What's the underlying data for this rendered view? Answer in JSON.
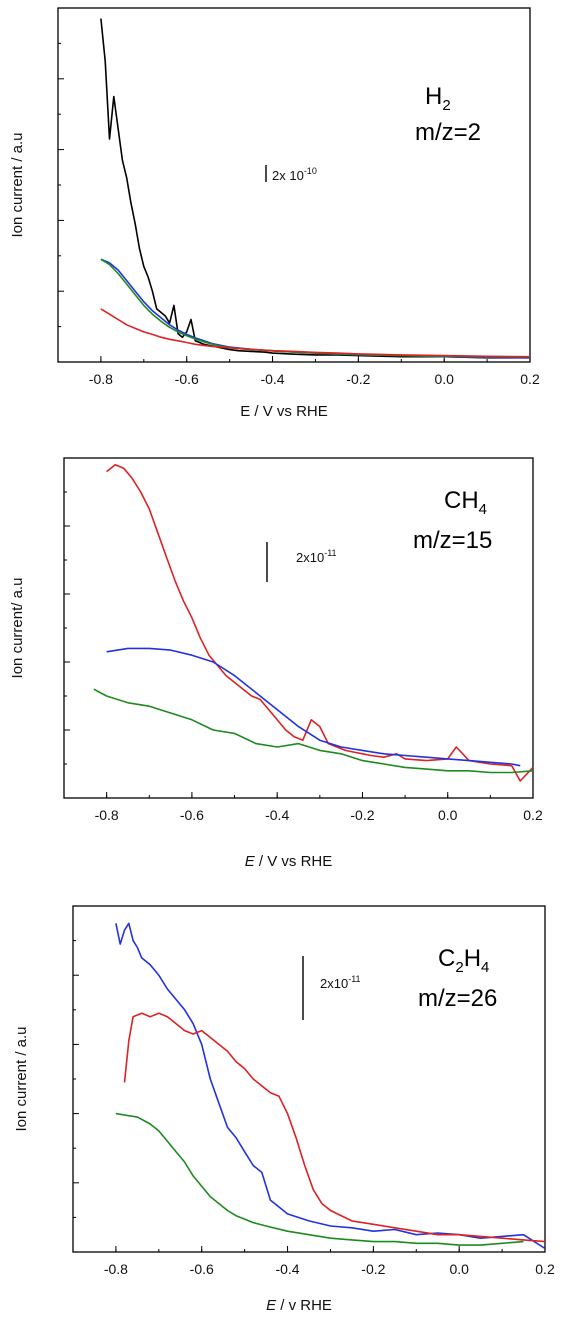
{
  "chart_data": [
    {
      "type": "line",
      "species": "H",
      "species_sub": "2",
      "species_tail": "",
      "mz": "m/z=2",
      "scale_bar": "2x 10",
      "scale_bar_exp": "-10",
      "xlabel_italic": "E",
      "xlabel_rest": " / V vs RHE",
      "ylabel": "Ion current / a.u",
      "xlim": [
        -0.9,
        0.2
      ],
      "ylim": [
        0,
        10
      ],
      "xticks": [
        "-0.8",
        "-0.6",
        "-0.4",
        "-0.2",
        "0.0",
        "0.2"
      ],
      "xtick_values": [
        -0.8,
        -0.6,
        -0.4,
        -0.2,
        0.0,
        0.2
      ],
      "series": [
        {
          "color": "#000000",
          "x": [
            -0.8,
            -0.79,
            -0.78,
            -0.77,
            -0.76,
            -0.75,
            -0.74,
            -0.73,
            -0.72,
            -0.71,
            -0.7,
            -0.69,
            -0.68,
            -0.67,
            -0.66,
            -0.65,
            -0.64,
            -0.63,
            -0.62,
            -0.61,
            -0.6,
            -0.59,
            -0.58,
            -0.56,
            -0.54,
            -0.52,
            -0.5,
            -0.48,
            -0.45,
            -0.42,
            -0.4,
            -0.35,
            -0.3,
            -0.25,
            -0.2,
            -0.1,
            0.0,
            0.1,
            0.2
          ],
          "y": [
            9.7,
            8.5,
            6.3,
            7.5,
            6.6,
            5.7,
            5.2,
            4.5,
            3.9,
            3.2,
            2.7,
            2.4,
            2.0,
            1.5,
            1.4,
            1.3,
            1.1,
            1.6,
            0.8,
            0.7,
            0.85,
            1.2,
            0.6,
            0.5,
            0.45,
            0.4,
            0.35,
            0.32,
            0.3,
            0.28,
            0.25,
            0.22,
            0.2,
            0.2,
            0.18,
            0.15,
            0.15,
            0.12,
            0.12
          ]
        },
        {
          "color": "#2233dd",
          "x": [
            -0.8,
            -0.78,
            -0.76,
            -0.74,
            -0.72,
            -0.7,
            -0.68,
            -0.66,
            -0.64,
            -0.62,
            -0.6,
            -0.58,
            -0.56,
            -0.54,
            -0.52,
            -0.5,
            -0.45,
            -0.4,
            -0.35,
            -0.3,
            -0.25,
            -0.2,
            -0.1,
            0.0,
            0.1,
            0.2
          ],
          "y": [
            2.9,
            2.8,
            2.6,
            2.3,
            2.0,
            1.7,
            1.45,
            1.25,
            1.05,
            0.9,
            0.78,
            0.68,
            0.6,
            0.52,
            0.47,
            0.42,
            0.36,
            0.32,
            0.28,
            0.25,
            0.22,
            0.2,
            0.18,
            0.15,
            0.13,
            0.12
          ]
        },
        {
          "color": "#1f8a1f",
          "x": [
            -0.8,
            -0.78,
            -0.76,
            -0.74,
            -0.72,
            -0.7,
            -0.68,
            -0.66,
            -0.64,
            -0.62,
            -0.6,
            -0.58,
            -0.56,
            -0.54,
            -0.52,
            -0.5,
            -0.45,
            -0.4,
            -0.35,
            -0.3,
            -0.25,
            -0.2,
            -0.1,
            0.0,
            0.1,
            0.2
          ],
          "y": [
            2.9,
            2.75,
            2.5,
            2.2,
            1.9,
            1.6,
            1.35,
            1.15,
            0.98,
            0.85,
            0.74,
            0.65,
            0.57,
            0.5,
            0.45,
            0.4,
            0.35,
            0.31,
            0.28,
            0.25,
            0.23,
            0.21,
            0.18,
            0.16,
            0.15,
            0.14
          ]
        },
        {
          "color": "#dd2222",
          "x": [
            -0.8,
            -0.78,
            -0.76,
            -0.74,
            -0.72,
            -0.7,
            -0.68,
            -0.66,
            -0.64,
            -0.62,
            -0.6,
            -0.58,
            -0.56,
            -0.54,
            -0.52,
            -0.5,
            -0.45,
            -0.4,
            -0.35,
            -0.3,
            -0.25,
            -0.2,
            -0.1,
            0.0,
            0.1,
            0.2
          ],
          "y": [
            1.5,
            1.35,
            1.2,
            1.05,
            0.95,
            0.85,
            0.78,
            0.7,
            0.64,
            0.6,
            0.55,
            0.5,
            0.47,
            0.44,
            0.42,
            0.4,
            0.36,
            0.32,
            0.3,
            0.27,
            0.25,
            0.23,
            0.2,
            0.18,
            0.16,
            0.15
          ]
        }
      ]
    },
    {
      "type": "line",
      "species": "CH",
      "species_sub": "4",
      "species_tail": "",
      "mz": "m/z=15",
      "scale_bar": "2x10",
      "scale_bar_exp": "-11",
      "xlabel_italic": "E",
      "xlabel_rest": " / V vs RHE",
      "ylabel": "Ion current/ a.u",
      "xlim": [
        -0.9,
        0.2
      ],
      "ylim": [
        0,
        10
      ],
      "xticks": [
        "-0.8",
        "-0.6",
        "-0.4",
        "-0.2",
        "0.0",
        "0.2"
      ],
      "xtick_values": [
        -0.8,
        -0.6,
        -0.4,
        -0.2,
        0.0,
        0.2
      ],
      "series": [
        {
          "color": "#dd2222",
          "x": [
            -0.8,
            -0.78,
            -0.76,
            -0.74,
            -0.72,
            -0.7,
            -0.68,
            -0.66,
            -0.64,
            -0.62,
            -0.6,
            -0.58,
            -0.56,
            -0.54,
            -0.52,
            -0.5,
            -0.48,
            -0.46,
            -0.44,
            -0.42,
            -0.4,
            -0.38,
            -0.36,
            -0.34,
            -0.32,
            -0.3,
            -0.28,
            -0.26,
            -0.24,
            -0.22,
            -0.2,
            -0.18,
            -0.15,
            -0.12,
            -0.1,
            -0.05,
            0.0,
            0.02,
            0.05,
            0.1,
            0.15,
            0.17,
            0.2
          ],
          "y": [
            9.6,
            9.8,
            9.7,
            9.4,
            9.0,
            8.5,
            7.8,
            7.1,
            6.4,
            5.8,
            5.3,
            4.7,
            4.2,
            3.9,
            3.6,
            3.4,
            3.2,
            3.0,
            2.9,
            2.6,
            2.3,
            2.0,
            1.8,
            1.7,
            2.3,
            2.1,
            1.6,
            1.5,
            1.4,
            1.35,
            1.3,
            1.25,
            1.2,
            1.3,
            1.15,
            1.1,
            1.15,
            1.5,
            1.1,
            1.0,
            0.95,
            0.5,
            0.9
          ]
        },
        {
          "color": "#2233dd",
          "x": [
            -0.8,
            -0.75,
            -0.7,
            -0.65,
            -0.6,
            -0.55,
            -0.5,
            -0.45,
            -0.4,
            -0.35,
            -0.3,
            -0.25,
            -0.2,
            -0.15,
            -0.1,
            -0.05,
            0.0,
            0.05,
            0.1,
            0.15,
            0.17
          ],
          "y": [
            4.3,
            4.4,
            4.4,
            4.35,
            4.2,
            4.0,
            3.6,
            3.1,
            2.6,
            2.1,
            1.7,
            1.5,
            1.4,
            1.3,
            1.25,
            1.2,
            1.15,
            1.1,
            1.05,
            1.0,
            0.95
          ]
        },
        {
          "color": "#1f8a1f",
          "x": [
            -0.83,
            -0.8,
            -0.75,
            -0.7,
            -0.65,
            -0.6,
            -0.55,
            -0.5,
            -0.45,
            -0.4,
            -0.35,
            -0.3,
            -0.25,
            -0.2,
            -0.15,
            -0.1,
            -0.05,
            0.0,
            0.05,
            0.1,
            0.15,
            0.2
          ],
          "y": [
            3.2,
            3.0,
            2.8,
            2.7,
            2.5,
            2.3,
            2.0,
            1.9,
            1.6,
            1.5,
            1.6,
            1.4,
            1.3,
            1.1,
            1.0,
            0.9,
            0.85,
            0.8,
            0.8,
            0.75,
            0.75,
            0.8
          ]
        }
      ]
    },
    {
      "type": "line",
      "species": "C",
      "species_sub": "2",
      "species_tail": "H",
      "species_sub2": "4",
      "mz": "m/z=26",
      "scale_bar": "2x10",
      "scale_bar_exp": "-11",
      "xlabel_italic": "E",
      "xlabel_rest": " / v RHE",
      "ylabel": "Ion current / a.u",
      "xlim": [
        -0.9,
        0.2
      ],
      "ylim": [
        0,
        10
      ],
      "xticks": [
        "-0.8",
        "-0.6",
        "-0.4",
        "-0.2",
        "0.0",
        "0.2"
      ],
      "xtick_values": [
        -0.8,
        -0.6,
        -0.4,
        -0.2,
        0.0,
        0.2
      ],
      "series": [
        {
          "color": "#2233dd",
          "x": [
            -0.8,
            -0.79,
            -0.78,
            -0.77,
            -0.76,
            -0.75,
            -0.74,
            -0.72,
            -0.7,
            -0.68,
            -0.66,
            -0.64,
            -0.62,
            -0.6,
            -0.58,
            -0.56,
            -0.54,
            -0.52,
            -0.5,
            -0.48,
            -0.46,
            -0.44,
            -0.42,
            -0.4,
            -0.35,
            -0.3,
            -0.25,
            -0.2,
            -0.15,
            -0.1,
            -0.05,
            0.0,
            0.05,
            0.1,
            0.15,
            0.2
          ],
          "y": [
            9.5,
            8.9,
            9.3,
            9.5,
            9.0,
            8.8,
            8.5,
            8.3,
            8.0,
            7.6,
            7.3,
            7.0,
            6.6,
            6.0,
            5.0,
            4.3,
            3.6,
            3.3,
            2.9,
            2.5,
            2.3,
            1.5,
            1.3,
            1.1,
            0.9,
            0.75,
            0.7,
            0.6,
            0.65,
            0.5,
            0.55,
            0.5,
            0.4,
            0.45,
            0.5,
            0.1
          ]
        },
        {
          "color": "#dd2222",
          "x": [
            -0.78,
            -0.77,
            -0.76,
            -0.74,
            -0.72,
            -0.7,
            -0.68,
            -0.66,
            -0.64,
            -0.62,
            -0.6,
            -0.58,
            -0.56,
            -0.54,
            -0.52,
            -0.5,
            -0.48,
            -0.46,
            -0.44,
            -0.42,
            -0.4,
            -0.38,
            -0.36,
            -0.34,
            -0.32,
            -0.3,
            -0.25,
            -0.2,
            -0.15,
            -0.1,
            -0.05,
            0.0,
            0.05,
            0.1,
            0.15,
            0.2
          ],
          "y": [
            4.9,
            6.1,
            6.8,
            6.9,
            6.8,
            6.9,
            6.8,
            6.6,
            6.4,
            6.3,
            6.4,
            6.2,
            6.0,
            5.8,
            5.5,
            5.3,
            5.0,
            4.8,
            4.6,
            4.5,
            4.0,
            3.3,
            2.5,
            1.8,
            1.4,
            1.2,
            0.9,
            0.8,
            0.7,
            0.6,
            0.5,
            0.5,
            0.45,
            0.4,
            0.35,
            0.3
          ]
        },
        {
          "color": "#1f8a1f",
          "x": [
            -0.8,
            -0.75,
            -0.72,
            -0.7,
            -0.68,
            -0.66,
            -0.64,
            -0.62,
            -0.6,
            -0.58,
            -0.56,
            -0.54,
            -0.52,
            -0.5,
            -0.48,
            -0.45,
            -0.4,
            -0.35,
            -0.3,
            -0.25,
            -0.2,
            -0.15,
            -0.1,
            -0.05,
            0.0,
            0.05,
            0.1,
            0.15
          ],
          "y": [
            4.0,
            3.9,
            3.7,
            3.5,
            3.2,
            2.9,
            2.6,
            2.2,
            1.9,
            1.6,
            1.4,
            1.2,
            1.05,
            0.95,
            0.85,
            0.75,
            0.6,
            0.5,
            0.4,
            0.35,
            0.3,
            0.3,
            0.25,
            0.25,
            0.2,
            0.2,
            0.25,
            0.3
          ]
        }
      ]
    }
  ]
}
